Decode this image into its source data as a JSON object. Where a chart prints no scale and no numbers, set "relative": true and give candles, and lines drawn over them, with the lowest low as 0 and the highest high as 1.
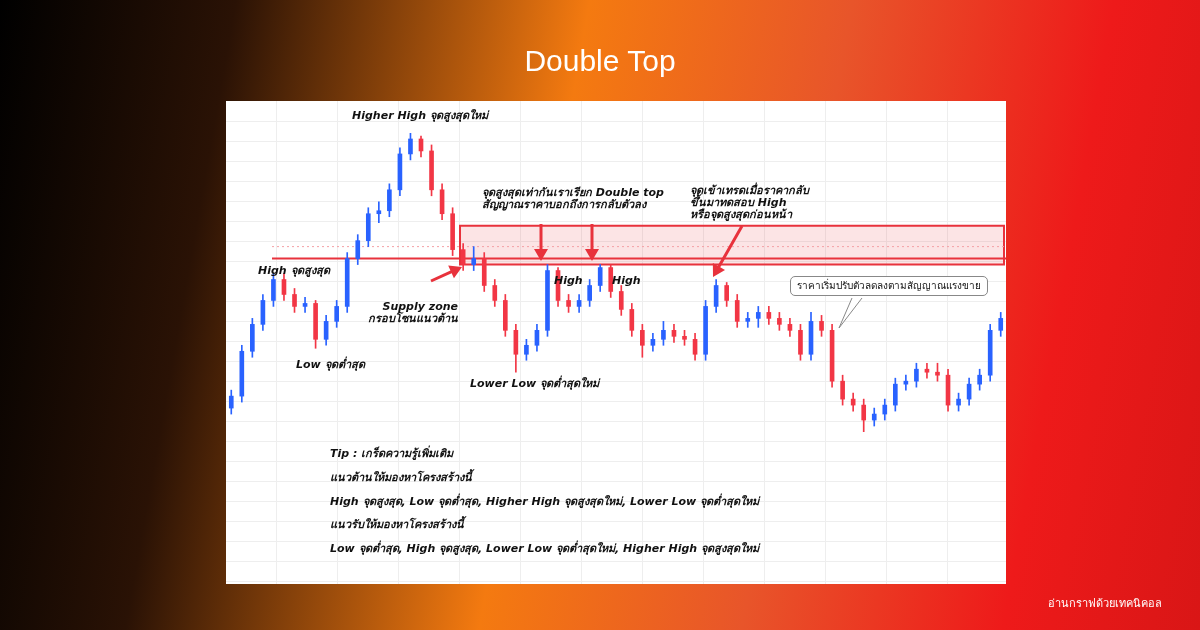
{
  "chart_data": {
    "type": "candlestick",
    "title": "Double Top",
    "relative": true,
    "grid": true,
    "legend": false,
    "categories": [
      null,
      null,
      null,
      null,
      null,
      null,
      null,
      null,
      null,
      null,
      null,
      null,
      null,
      null,
      null,
      null,
      null,
      null,
      null,
      null,
      null,
      null,
      null,
      null,
      null,
      null,
      null,
      null,
      null,
      null,
      null,
      null,
      null,
      null,
      null,
      null,
      null,
      null,
      null,
      null,
      null,
      null,
      null,
      null,
      null,
      null,
      null,
      null,
      null,
      null,
      null,
      null,
      null,
      null,
      null,
      null,
      null,
      null,
      null,
      null,
      null,
      null,
      null,
      null,
      null,
      null,
      null,
      null,
      null,
      null,
      null,
      null,
      null,
      null
    ],
    "ohlc": [
      [
        0.08,
        0.14,
        0.06,
        0.12
      ],
      [
        0.12,
        0.29,
        0.1,
        0.27
      ],
      [
        0.27,
        0.38,
        0.25,
        0.36
      ],
      [
        0.36,
        0.46,
        0.34,
        0.44
      ],
      [
        0.44,
        0.53,
        0.42,
        0.51
      ],
      [
        0.51,
        0.53,
        0.44,
        0.46
      ],
      [
        0.46,
        0.48,
        0.4,
        0.42
      ],
      [
        0.42,
        0.45,
        0.4,
        0.43
      ],
      [
        0.43,
        0.44,
        0.28,
        0.31
      ],
      [
        0.31,
        0.39,
        0.29,
        0.37
      ],
      [
        0.37,
        0.44,
        0.35,
        0.42
      ],
      [
        0.42,
        0.6,
        0.4,
        0.58
      ],
      [
        0.58,
        0.66,
        0.56,
        0.64
      ],
      [
        0.64,
        0.75,
        0.62,
        0.73
      ],
      [
        0.73,
        0.77,
        0.7,
        0.74
      ],
      [
        0.74,
        0.83,
        0.72,
        0.81
      ],
      [
        0.81,
        0.95,
        0.79,
        0.93
      ],
      [
        0.93,
        1,
        0.91,
        0.98
      ],
      [
        0.98,
        0.99,
        0.92,
        0.94
      ],
      [
        0.94,
        0.96,
        0.79,
        0.81
      ],
      [
        0.81,
        0.83,
        0.71,
        0.73
      ],
      [
        0.73,
        0.75,
        0.59,
        0.61
      ],
      [
        0.61,
        0.63,
        0.54,
        0.56
      ],
      [
        0.56,
        0.62,
        0.54,
        0.58
      ],
      [
        0.58,
        0.6,
        0.47,
        0.49
      ],
      [
        0.49,
        0.51,
        0.42,
        0.44
      ],
      [
        0.44,
        0.46,
        0.32,
        0.34
      ],
      [
        0.34,
        0.36,
        0.2,
        0.26
      ],
      [
        0.26,
        0.31,
        0.24,
        0.29
      ],
      [
        0.29,
        0.36,
        0.27,
        0.34
      ],
      [
        0.34,
        0.56,
        0.32,
        0.54
      ],
      [
        0.54,
        0.55,
        0.42,
        0.44
      ],
      [
        0.44,
        0.46,
        0.4,
        0.42
      ],
      [
        0.42,
        0.46,
        0.4,
        0.44
      ],
      [
        0.44,
        0.51,
        0.42,
        0.49
      ],
      [
        0.49,
        0.56,
        0.47,
        0.55
      ],
      [
        0.55,
        0.56,
        0.45,
        0.47
      ],
      [
        0.47,
        0.49,
        0.39,
        0.41
      ],
      [
        0.41,
        0.43,
        0.32,
        0.34
      ],
      [
        0.34,
        0.36,
        0.25,
        0.29
      ],
      [
        0.29,
        0.33,
        0.27,
        0.31
      ],
      [
        0.31,
        0.37,
        0.29,
        0.34
      ],
      [
        0.34,
        0.36,
        0.3,
        0.32
      ],
      [
        0.32,
        0.34,
        0.29,
        0.31
      ],
      [
        0.31,
        0.33,
        0.24,
        0.26
      ],
      [
        0.26,
        0.44,
        0.24,
        0.42
      ],
      [
        0.42,
        0.51,
        0.4,
        0.49
      ],
      [
        0.49,
        0.5,
        0.42,
        0.44
      ],
      [
        0.44,
        0.46,
        0.35,
        0.37
      ],
      [
        0.37,
        0.4,
        0.35,
        0.38
      ],
      [
        0.38,
        0.42,
        0.35,
        0.4
      ],
      [
        0.4,
        0.42,
        0.36,
        0.38
      ],
      [
        0.38,
        0.4,
        0.34,
        0.36
      ],
      [
        0.36,
        0.38,
        0.32,
        0.34
      ],
      [
        0.34,
        0.36,
        0.24,
        0.26
      ],
      [
        0.26,
        0.4,
        0.24,
        0.37
      ],
      [
        0.37,
        0.39,
        0.32,
        0.34
      ],
      [
        0.34,
        0.36,
        0.15,
        0.17
      ],
      [
        0.17,
        0.19,
        0.09,
        0.11
      ],
      [
        0.11,
        0.13,
        0.07,
        0.09
      ],
      [
        0.09,
        0.11,
        0,
        0.04
      ],
      [
        0.04,
        0.08,
        0.02,
        0.06
      ],
      [
        0.06,
        0.11,
        0.04,
        0.09
      ],
      [
        0.09,
        0.18,
        0.07,
        0.16
      ],
      [
        0.16,
        0.19,
        0.14,
        0.17
      ],
      [
        0.17,
        0.23,
        0.15,
        0.21
      ],
      [
        0.21,
        0.23,
        0.18,
        0.2
      ],
      [
        0.2,
        0.23,
        0.17,
        0.19
      ],
      [
        0.19,
        0.21,
        0.07,
        0.09
      ],
      [
        0.09,
        0.13,
        0.07,
        0.11
      ],
      [
        0.11,
        0.18,
        0.09,
        0.16
      ],
      [
        0.16,
        0.21,
        0.14,
        0.19
      ],
      [
        0.19,
        0.36,
        0.17,
        0.34
      ],
      [
        0.34,
        0.4,
        0.32,
        0.38
      ]
    ],
    "colors": [
      "#2962ff",
      "#2962ff",
      "#2962ff",
      "#2962ff",
      "#2962ff",
      "#f23645",
      "#f23645",
      "#2962ff",
      "#f23645",
      "#2962ff",
      "#2962ff",
      "#2962ff",
      "#2962ff",
      "#2962ff",
      "#2962ff",
      "#2962ff",
      "#2962ff",
      "#2962ff",
      "#f23645",
      "#f23645",
      "#f23645",
      "#f23645",
      "#f23645",
      "#2962ff",
      "#f23645",
      "#f23645",
      "#f23645",
      "#f23645",
      "#2962ff",
      "#2962ff",
      "#2962ff",
      "#f23645",
      "#f23645",
      "#2962ff",
      "#2962ff",
      "#2962ff",
      "#f23645",
      "#f23645",
      "#f23645",
      "#f23645",
      "#2962ff",
      "#2962ff",
      "#f23645",
      "#f23645",
      "#f23645",
      "#2962ff",
      "#2962ff",
      "#f23645",
      "#f23645",
      "#2962ff",
      "#2962ff",
      "#f23645",
      "#f23645",
      "#f23645",
      "#f23645",
      "#2962ff",
      "#f23645",
      "#f23645",
      "#f23645",
      "#f23645",
      "#f23645",
      "#2962ff",
      "#2962ff",
      "#2962ff",
      "#2962ff",
      "#2962ff",
      "#f23645",
      "#f23645",
      "#f23645",
      "#2962ff",
      "#2962ff",
      "#2962ff",
      "#2962ff",
      "#2962ff"
    ],
    "bands": [
      {
        "axis": "y",
        "from": 0.56,
        "to": 0.69,
        "color": "#e8323c"
      }
    ],
    "ref_lines": [
      {
        "axis": "y",
        "value": 0.58,
        "color": "#e8323c",
        "line_style": "solid"
      },
      {
        "axis": "y",
        "value": 0.62,
        "color": "#f4a0a6",
        "line_style": "dotted"
      }
    ],
    "annotations": [
      "Higher High จุดสูงสุดใหม่",
      "High จุดสูงสุด",
      "Low จุดต่ำสุด",
      "Supply zone\nกรอบโซนแนวต้าน",
      "Lower Low จุดต่ำสุดใหม่",
      "จุดสูงสุดเท่ากันเราเรียก Double top\nสัญญาณราคาบอกถึงการกลับตัวลง",
      "High",
      "High",
      "จุดเข้าเทรดเมื่อราคากลับ\nขึ้นมาทดสอบ High\nหรือจุดสูงสุดก่อนหน้า",
      "ราคาเริ่มปรับตัวลดลงตามสัญญาณแรงขาย",
      "Tip : เกร็ดความรู้เพิ่มเติม",
      "แนวต้านให้มองหาโครงสร้างนี้",
      "High จุดสูงสุด, Low จุดต่ำสุด, Higher High จุดสูงสุดใหม่, Lower Low จุดต่ำสุดใหม่",
      "แนวรับให้มองหาโครงสร้างนี้",
      "Low จุดต่ำสุด, High จุดสูงสุด, Lower Low จุดต่ำสุดใหม่, Higher High จุดสูงสุดใหม่",
      "อ่านกราฟด้วยเทคนิคอล"
    ]
  }
}
